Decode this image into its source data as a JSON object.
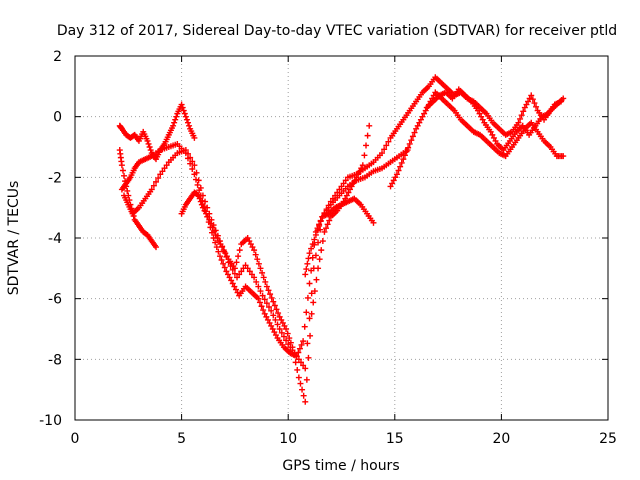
{
  "chart_data": {
    "type": "scatter",
    "title": "Day 312 of 2017, Sidereal Day-to-day VTEC variation (SDTVAR) for receiver ptld",
    "xlabel": "GPS time / hours",
    "ylabel": "SDTVAR / TECUs",
    "xlim": [
      0,
      25
    ],
    "ylim": [
      -10,
      2
    ],
    "x_ticks": [
      "0",
      "5",
      "10",
      "15",
      "20",
      "25"
    ],
    "y_ticks": [
      "-10",
      "-8",
      "-6",
      "-4",
      "-2",
      "0",
      "2"
    ],
    "grid": true,
    "legend": "none",
    "marker": "+",
    "color": "#ff0000",
    "series": [
      {
        "x": [
          2.1,
          2.2,
          2.4,
          2.6,
          2.8,
          3.0,
          3.2,
          3.4,
          3.6,
          3.8,
          4.0,
          4.2,
          4.4,
          4.6,
          4.8,
          5.0,
          5.2,
          5.4,
          5.6
        ],
        "values": [
          -0.3,
          -0.4,
          -0.6,
          -0.7,
          -0.6,
          -0.8,
          -0.5,
          -0.8,
          -1.2,
          -1.4,
          -1.1,
          -0.9,
          -0.6,
          -0.3,
          0.1,
          0.4,
          0.0,
          -0.4,
          -0.7
        ]
      },
      {
        "x": [
          2.1,
          2.2,
          2.4,
          2.6,
          2.8,
          3.0,
          3.2,
          3.4,
          3.6,
          3.8
        ],
        "values": [
          -1.1,
          -1.6,
          -2.3,
          -2.9,
          -3.4,
          -3.6,
          -3.8,
          -3.9,
          -4.1,
          -4.3
        ]
      },
      {
        "x": [
          2.2,
          2.4,
          2.6,
          2.8,
          3.0,
          3.3,
          3.6,
          4.0,
          4.4,
          4.8,
          5.2,
          5.6,
          5.9,
          6.2,
          6.5,
          6.8,
          7.1,
          7.4,
          7.7,
          8.0,
          8.3,
          8.6,
          8.9,
          9.2,
          9.5,
          9.8,
          10.1,
          10.4,
          10.7,
          11.0,
          11.3,
          11.6,
          11.9,
          12.2,
          12.5,
          12.8,
          13.1,
          13.4,
          13.7,
          14.0
        ],
        "values": [
          -2.4,
          -2.2,
          -2.0,
          -1.7,
          -1.5,
          -1.4,
          -1.3,
          -1.1,
          -1.0,
          -0.9,
          -1.2,
          -1.9,
          -2.6,
          -3.3,
          -4.0,
          -4.6,
          -5.1,
          -5.5,
          -5.9,
          -5.6,
          -5.8,
          -6.0,
          -6.5,
          -6.9,
          -7.3,
          -7.6,
          -7.8,
          -7.9,
          -7.4,
          -5.5,
          -3.8,
          -3.3,
          -3.2,
          -3.0,
          -2.9,
          -2.8,
          -2.7,
          -2.9,
          -3.2,
          -3.5
        ]
      },
      {
        "x": [
          2.3,
          2.5,
          2.7,
          3.0,
          3.3,
          3.6,
          4.0,
          4.4,
          4.8,
          5.2,
          5.6,
          6.0,
          6.4,
          6.8,
          7.2,
          7.6,
          8.0,
          8.4,
          8.8,
          9.2,
          9.6,
          10.0,
          10.4,
          10.8,
          11.2,
          11.6,
          12.0,
          12.4,
          12.8,
          13.2,
          13.6,
          14.0,
          14.4,
          14.8,
          15.2,
          15.6
        ],
        "values": [
          -2.6,
          -2.9,
          -3.2,
          -3.0,
          -2.7,
          -2.4,
          -1.9,
          -1.5,
          -1.2,
          -1.1,
          -1.6,
          -2.6,
          -3.4,
          -4.1,
          -4.8,
          -5.3,
          -4.9,
          -5.3,
          -5.9,
          -6.4,
          -7.0,
          -7.5,
          -7.9,
          -8.3,
          -5.0,
          -3.3,
          -2.9,
          -2.6,
          -2.3,
          -2.1,
          -2.0,
          -1.8,
          -1.7,
          -1.5,
          -1.3,
          -1.1
        ]
      },
      {
        "x": [
          5.0,
          5.2,
          5.4,
          5.6,
          5.8,
          6.0,
          6.3,
          6.6,
          6.9,
          7.2,
          7.5,
          7.8,
          8.1,
          8.4,
          8.7,
          9.0,
          9.3,
          9.6,
          9.9,
          10.2,
          10.5,
          10.8,
          11.1,
          11.4,
          11.7,
          12.0,
          12.3,
          12.6,
          12.9,
          13.2,
          13.5,
          13.8
        ],
        "values": [
          -3.2,
          -2.9,
          -2.7,
          -2.5,
          -2.6,
          -3.0,
          -3.4,
          -3.9,
          -4.3,
          -4.7,
          -5.0,
          -4.2,
          -4.0,
          -4.4,
          -5.0,
          -5.6,
          -6.1,
          -6.6,
          -7.0,
          -7.6,
          -8.6,
          -9.4,
          -6.5,
          -5.0,
          -3.8,
          -3.3,
          -3.1,
          -2.8,
          -2.4,
          -2.0,
          -1.6,
          -0.3
        ]
      },
      {
        "x": [
          10.8,
          11.0,
          11.3,
          11.6,
          12.0,
          12.4,
          12.8,
          13.2,
          13.6,
          14.0,
          14.4,
          14.8,
          15.1,
          15.4,
          15.7,
          16.0,
          16.3,
          16.6,
          16.9,
          17.2,
          17.5,
          17.8,
          18.1,
          18.4,
          18.7,
          19.0,
          19.3,
          19.6,
          19.9,
          20.2,
          20.5,
          20.8,
          21.1,
          21.4,
          21.7,
          22.0,
          22.3,
          22.6,
          22.9
        ],
        "values": [
          -5.2,
          -4.5,
          -3.9,
          -3.3,
          -2.8,
          -2.4,
          -2.0,
          -1.9,
          -1.7,
          -1.5,
          -1.2,
          -0.7,
          -0.4,
          -0.1,
          0.2,
          0.5,
          0.8,
          1.0,
          1.3,
          1.1,
          0.9,
          0.7,
          0.8,
          0.6,
          0.5,
          0.3,
          0.1,
          -0.2,
          -0.4,
          -0.6,
          -0.5,
          -0.2,
          0.3,
          0.7,
          0.2,
          -0.1,
          0.2,
          0.4,
          0.6
        ]
      },
      {
        "x": [
          14.8,
          15.1,
          15.4,
          15.7,
          16.0,
          16.3,
          16.6,
          16.9,
          17.2,
          17.5,
          17.8,
          18.1,
          18.4,
          18.7,
          19.0,
          19.3,
          19.6,
          19.9,
          20.2,
          20.5,
          20.8,
          21.1,
          21.4,
          21.7,
          22.0,
          22.3,
          22.6,
          22.9
        ],
        "values": [
          -2.3,
          -1.9,
          -1.4,
          -0.9,
          -0.4,
          0.0,
          0.4,
          0.8,
          0.6,
          0.4,
          0.2,
          -0.1,
          -0.3,
          -0.5,
          -0.6,
          -0.8,
          -1.0,
          -1.2,
          -1.3,
          -1.0,
          -0.7,
          -0.4,
          -0.2,
          -0.5,
          -0.8,
          -1.0,
          -1.3,
          -1.3
        ]
      },
      {
        "x": [
          16.5,
          16.8,
          17.1,
          17.4,
          17.7,
          18.0,
          18.3,
          18.6,
          18.9,
          19.2,
          19.5,
          19.8,
          20.1,
          20.4,
          20.7,
          21.0,
          21.3,
          21.6,
          21.9,
          22.2,
          22.5,
          22.8
        ],
        "values": [
          0.3,
          0.5,
          0.7,
          0.8,
          0.6,
          0.9,
          0.7,
          0.5,
          0.2,
          -0.2,
          -0.5,
          -0.9,
          -1.1,
          -0.8,
          -0.5,
          -0.3,
          -0.6,
          -0.3,
          0.0,
          0.1,
          0.4,
          0.5
        ]
      }
    ]
  }
}
